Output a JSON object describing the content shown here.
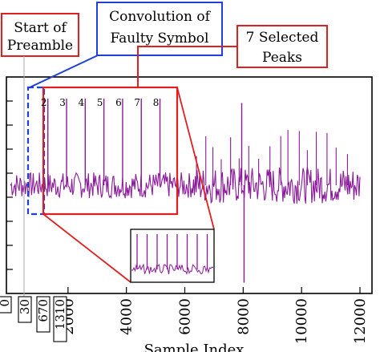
{
  "callouts": {
    "preamble_start": [
      "Start of",
      "Preamble"
    ],
    "faulty_symbol": [
      "Convolution of",
      "Faulty Symbol"
    ],
    "selected_peaks": [
      "7 Selected",
      "Peaks"
    ]
  },
  "colors": {
    "signal": "#8b1a9a",
    "signal_light": "#c58ad1",
    "highlight_box": "#e02020",
    "faulty_box": "#1f3fd6",
    "guide": "#999999"
  },
  "chart_data": {
    "type": "line",
    "title": "",
    "xlabel": "Sample Index",
    "ylabel": "",
    "xlim": [
      0,
      12000
    ],
    "x_ticks": [
      2000,
      4000,
      6000,
      8000,
      10000,
      12000
    ],
    "x_tick_labels": [
      "2000",
      "4000",
      "6000",
      "8000",
      "10000",
      "12000"
    ],
    "marked_indices": [
      0,
      30,
      670,
      1310
    ],
    "marked_labels": [
      "0",
      "30",
      "670",
      "1310"
    ],
    "peak_labels": [
      "2",
      "3",
      "4",
      "5",
      "6",
      "7",
      "8"
    ],
    "noise_baseline": 0.5,
    "noise_band": [
      0.45,
      0.6
    ],
    "peaks": [
      {
        "x": 1310,
        "y": 0.9
      },
      {
        "x": 1950,
        "y": 0.9
      },
      {
        "x": 2590,
        "y": 0.9
      },
      {
        "x": 3230,
        "y": 0.9
      },
      {
        "x": 3870,
        "y": 0.9
      },
      {
        "x": 4510,
        "y": 0.9
      },
      {
        "x": 5150,
        "y": 0.9
      },
      {
        "x": 7950,
        "y": 0.88
      },
      {
        "x": 8030,
        "y": 0.05
      }
    ]
  }
}
